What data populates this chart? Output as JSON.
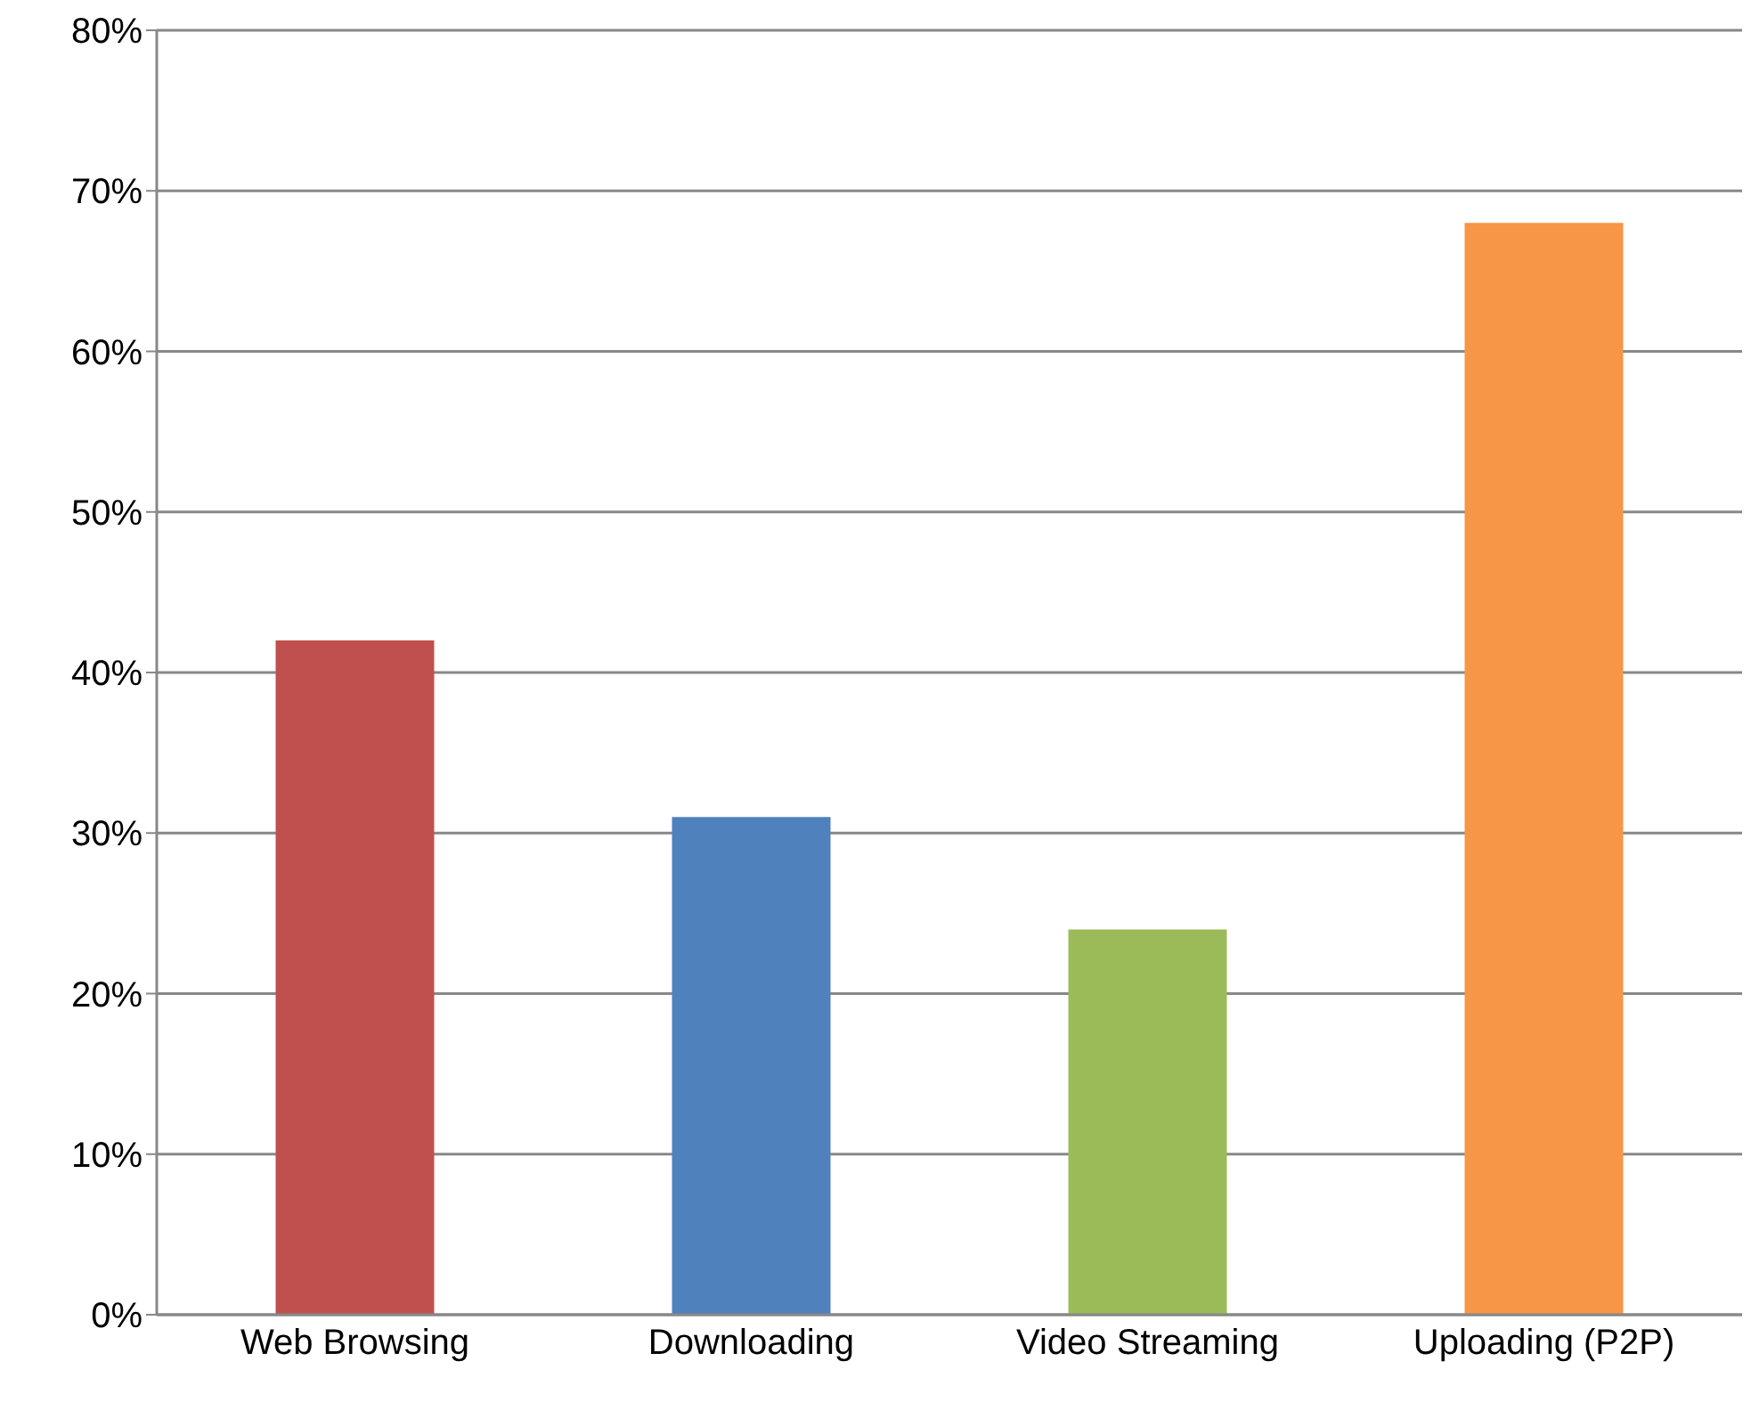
{
  "chart_data": {
    "type": "bar",
    "categories": [
      "Web Browsing",
      "Downloading",
      "Video Streaming",
      "Uploading (P2P)"
    ],
    "values": [
      42,
      31,
      24,
      68
    ],
    "colors": [
      "#c0504d",
      "#4f81bd",
      "#9bbb59",
      "#f79646"
    ],
    "ylim": [
      0,
      80
    ],
    "yticks": [
      {
        "value": 0,
        "label": "0%"
      },
      {
        "value": 10,
        "label": "10%"
      },
      {
        "value": 20,
        "label": "20%"
      },
      {
        "value": 30,
        "label": "30%"
      },
      {
        "value": 40,
        "label": "40%"
      },
      {
        "value": 50,
        "label": "50%"
      },
      {
        "value": 60,
        "label": "60%"
      },
      {
        "value": 70,
        "label": "70%"
      },
      {
        "value": 80,
        "label": "80%"
      }
    ],
    "grid": "y"
  }
}
